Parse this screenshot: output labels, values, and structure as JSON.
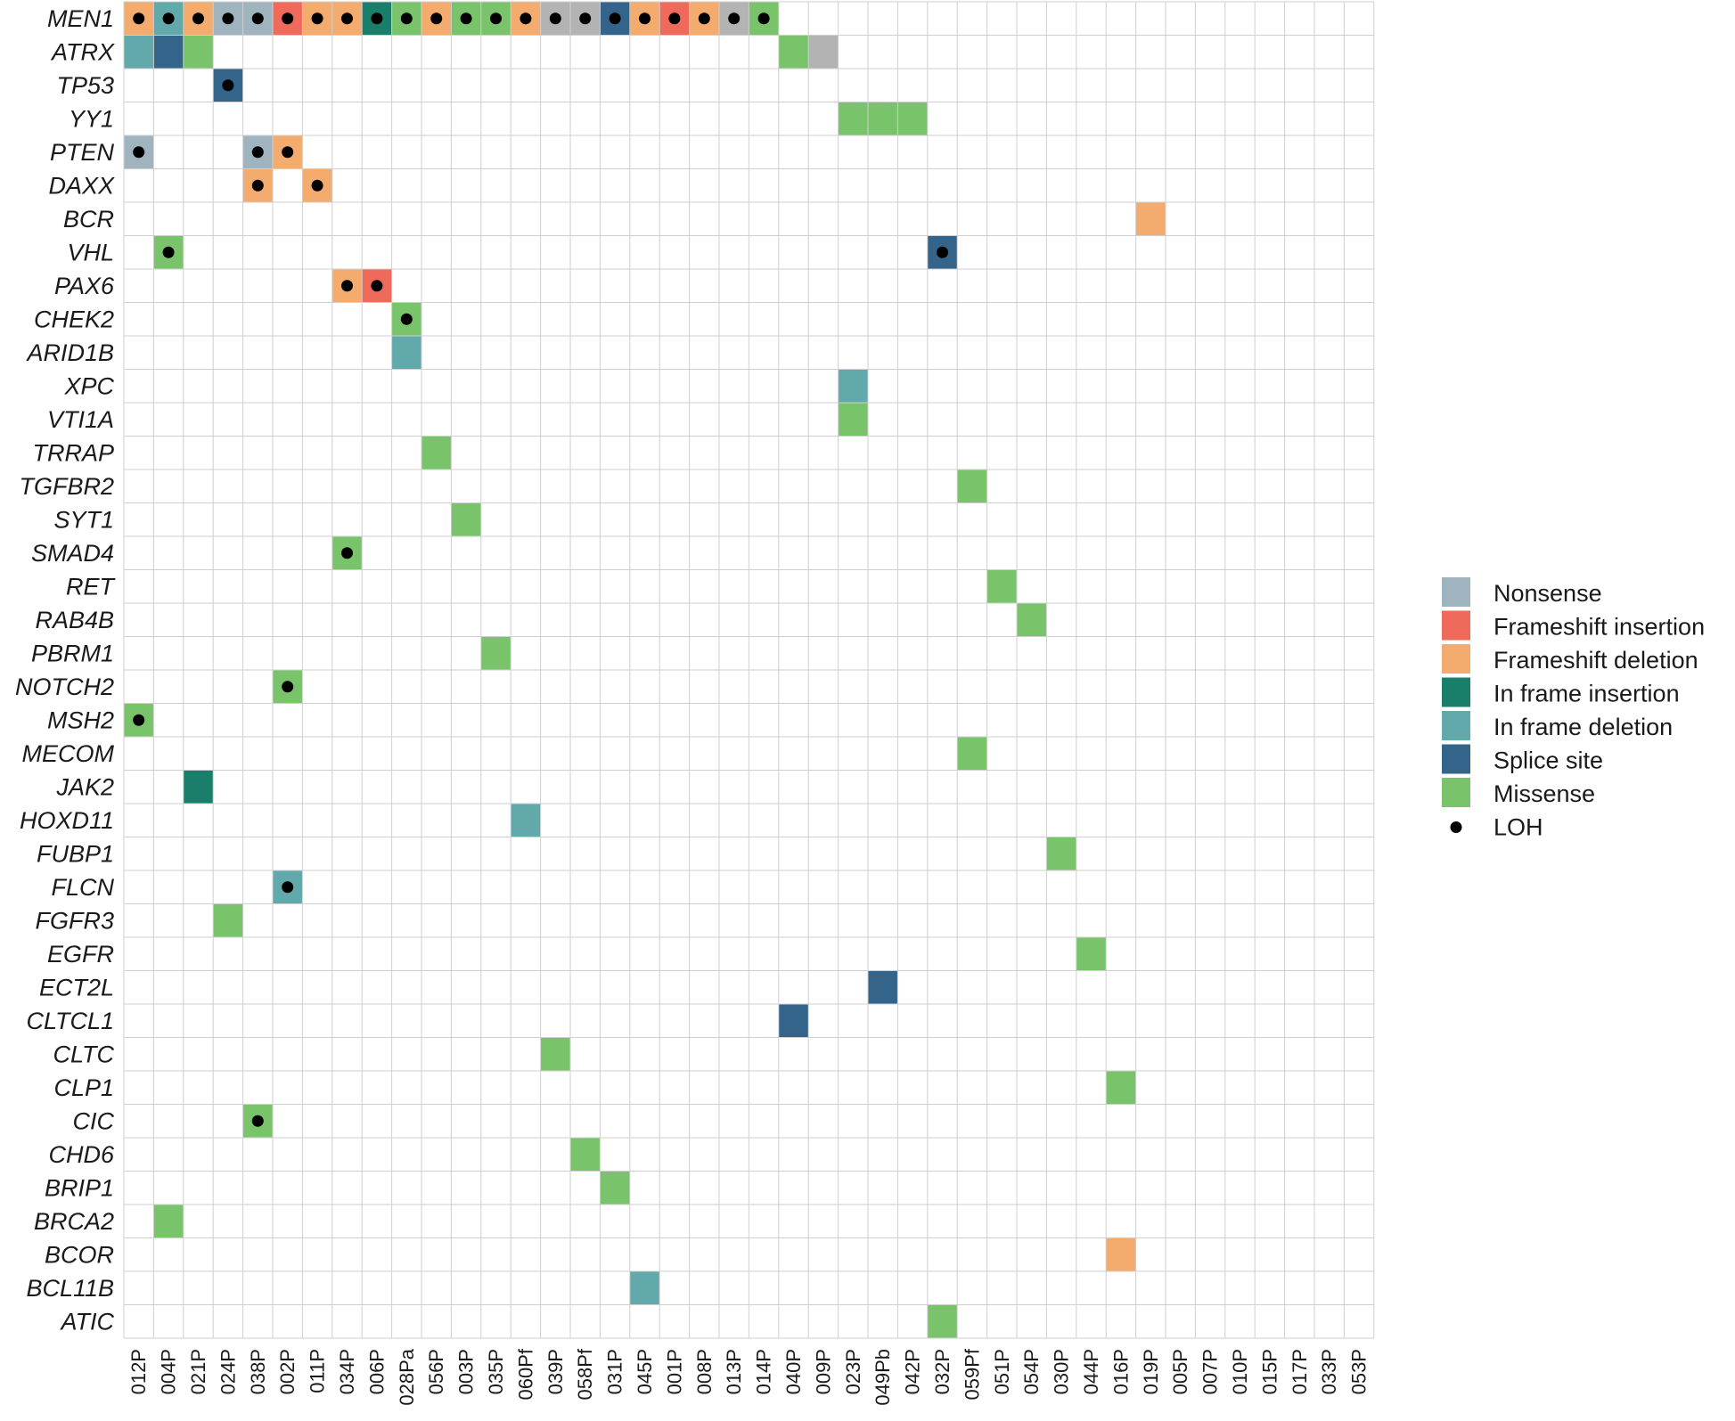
{
  "chart_data": {
    "type": "heatmap",
    "title": "",
    "genes": [
      "MEN1",
      "ATRX",
      "TP53",
      "YY1",
      "PTEN",
      "DAXX",
      "BCR",
      "VHL",
      "PAX6",
      "CHEK2",
      "ARID1B",
      "XPC",
      "VTI1A",
      "TRRAP",
      "TGFBR2",
      "SYT1",
      "SMAD4",
      "RET",
      "RAB4B",
      "PBRM1",
      "NOTCH2",
      "MSH2",
      "MECOM",
      "JAK2",
      "HOXD11",
      "FUBP1",
      "FLCN",
      "FGFR3",
      "EGFR",
      "ECT2L",
      "CLTCL1",
      "CLTC",
      "CLP1",
      "CIC",
      "CHD6",
      "BRIP1",
      "BRCA2",
      "BCOR",
      "BCL11B",
      "ATIC"
    ],
    "samples": [
      "012P",
      "004P",
      "021P",
      "024P",
      "038P",
      "002P",
      "011P",
      "034P",
      "006P",
      "028Pa",
      "056P",
      "003P",
      "035P",
      "060Pf",
      "039P",
      "058Pf",
      "031P",
      "045P",
      "001P",
      "008P",
      "013P",
      "014P",
      "040P",
      "009P",
      "023P",
      "049Pb",
      "042P",
      "032P",
      "059Pf",
      "051P",
      "054P",
      "030P",
      "044P",
      "016P",
      "019P",
      "005P",
      "007P",
      "010P",
      "015P",
      "017P",
      "033P",
      "053P"
    ],
    "categories": [
      {
        "key": "nonsense",
        "label": "Nonsense",
        "color": "#a0b4bf"
      },
      {
        "key": "fs_ins",
        "label": "Frameshift insertion",
        "color": "#ef6a5a"
      },
      {
        "key": "fs_del",
        "label": "Frameshift deletion",
        "color": "#f4ab6e"
      },
      {
        "key": "if_ins",
        "label": "In frame insertion",
        "color": "#1a7f6a"
      },
      {
        "key": "if_del",
        "label": "In frame deletion",
        "color": "#62a9ab"
      },
      {
        "key": "splice",
        "label": "Splice site",
        "color": "#35648a"
      },
      {
        "key": "missense",
        "label": "Missense",
        "color": "#79c46b"
      }
    ],
    "loh_label": "LOH",
    "other_color": "#b3b3b3",
    "mutations": [
      {
        "gene": "MEN1",
        "sample": "012P",
        "type": "fs_del",
        "loh": true
      },
      {
        "gene": "MEN1",
        "sample": "004P",
        "type": "if_del",
        "loh": true
      },
      {
        "gene": "MEN1",
        "sample": "021P",
        "type": "fs_del",
        "loh": true
      },
      {
        "gene": "MEN1",
        "sample": "024P",
        "type": "nonsense",
        "loh": true
      },
      {
        "gene": "MEN1",
        "sample": "038P",
        "type": "nonsense",
        "loh": true
      },
      {
        "gene": "MEN1",
        "sample": "002P",
        "type": "fs_ins",
        "loh": true
      },
      {
        "gene": "MEN1",
        "sample": "011P",
        "type": "fs_del",
        "loh": true
      },
      {
        "gene": "MEN1",
        "sample": "034P",
        "type": "fs_del",
        "loh": true
      },
      {
        "gene": "MEN1",
        "sample": "006P",
        "type": "if_ins",
        "loh": true
      },
      {
        "gene": "MEN1",
        "sample": "028Pa",
        "type": "missense",
        "loh": true
      },
      {
        "gene": "MEN1",
        "sample": "056P",
        "type": "fs_del",
        "loh": true
      },
      {
        "gene": "MEN1",
        "sample": "003P",
        "type": "missense",
        "loh": true
      },
      {
        "gene": "MEN1",
        "sample": "035P",
        "type": "missense",
        "loh": true
      },
      {
        "gene": "MEN1",
        "sample": "060Pf",
        "type": "fs_del",
        "loh": true
      },
      {
        "gene": "MEN1",
        "sample": "039P",
        "type": "other",
        "loh": true
      },
      {
        "gene": "MEN1",
        "sample": "058Pf",
        "type": "other",
        "loh": true
      },
      {
        "gene": "MEN1",
        "sample": "031P",
        "type": "splice",
        "loh": true
      },
      {
        "gene": "MEN1",
        "sample": "045P",
        "type": "fs_del",
        "loh": true
      },
      {
        "gene": "MEN1",
        "sample": "001P",
        "type": "fs_ins",
        "loh": true
      },
      {
        "gene": "MEN1",
        "sample": "008P",
        "type": "fs_del",
        "loh": true
      },
      {
        "gene": "MEN1",
        "sample": "013P",
        "type": "other",
        "loh": true
      },
      {
        "gene": "MEN1",
        "sample": "014P",
        "type": "missense",
        "loh": true
      },
      {
        "gene": "ATRX",
        "sample": "012P",
        "type": "if_del",
        "loh": false
      },
      {
        "gene": "ATRX",
        "sample": "004P",
        "type": "splice",
        "loh": false
      },
      {
        "gene": "ATRX",
        "sample": "021P",
        "type": "missense",
        "loh": false
      },
      {
        "gene": "ATRX",
        "sample": "040P",
        "type": "missense",
        "loh": false
      },
      {
        "gene": "ATRX",
        "sample": "009P",
        "type": "other",
        "loh": false
      },
      {
        "gene": "TP53",
        "sample": "024P",
        "type": "splice",
        "loh": true
      },
      {
        "gene": "YY1",
        "sample": "023P",
        "type": "missense",
        "loh": false
      },
      {
        "gene": "YY1",
        "sample": "049Pb",
        "type": "missense",
        "loh": false
      },
      {
        "gene": "YY1",
        "sample": "042P",
        "type": "missense",
        "loh": false
      },
      {
        "gene": "PTEN",
        "sample": "012P",
        "type": "nonsense",
        "loh": true
      },
      {
        "gene": "PTEN",
        "sample": "038P",
        "type": "nonsense",
        "loh": true
      },
      {
        "gene": "PTEN",
        "sample": "002P",
        "type": "fs_del",
        "loh": true
      },
      {
        "gene": "DAXX",
        "sample": "038P",
        "type": "fs_del",
        "loh": true
      },
      {
        "gene": "DAXX",
        "sample": "011P",
        "type": "fs_del",
        "loh": true
      },
      {
        "gene": "BCR",
        "sample": "019P",
        "type": "fs_del",
        "loh": false
      },
      {
        "gene": "VHL",
        "sample": "004P",
        "type": "missense",
        "loh": true
      },
      {
        "gene": "VHL",
        "sample": "032P",
        "type": "splice",
        "loh": true
      },
      {
        "gene": "PAX6",
        "sample": "034P",
        "type": "fs_del",
        "loh": true
      },
      {
        "gene": "PAX6",
        "sample": "006P",
        "type": "fs_ins",
        "loh": true
      },
      {
        "gene": "CHEK2",
        "sample": "028Pa",
        "type": "missense",
        "loh": true
      },
      {
        "gene": "ARID1B",
        "sample": "028Pa",
        "type": "if_del",
        "loh": false
      },
      {
        "gene": "XPC",
        "sample": "023P",
        "type": "if_del",
        "loh": false
      },
      {
        "gene": "VTI1A",
        "sample": "023P",
        "type": "missense",
        "loh": false
      },
      {
        "gene": "TRRAP",
        "sample": "056P",
        "type": "missense",
        "loh": false
      },
      {
        "gene": "TGFBR2",
        "sample": "059Pf",
        "type": "missense",
        "loh": false
      },
      {
        "gene": "SYT1",
        "sample": "003P",
        "type": "missense",
        "loh": false
      },
      {
        "gene": "SMAD4",
        "sample": "034P",
        "type": "missense",
        "loh": true
      },
      {
        "gene": "RET",
        "sample": "051P",
        "type": "missense",
        "loh": false
      },
      {
        "gene": "RAB4B",
        "sample": "054P",
        "type": "missense",
        "loh": false
      },
      {
        "gene": "PBRM1",
        "sample": "035P",
        "type": "missense",
        "loh": false
      },
      {
        "gene": "NOTCH2",
        "sample": "002P",
        "type": "missense",
        "loh": true
      },
      {
        "gene": "MSH2",
        "sample": "012P",
        "type": "missense",
        "loh": true
      },
      {
        "gene": "MECOM",
        "sample": "059Pf",
        "type": "missense",
        "loh": false
      },
      {
        "gene": "JAK2",
        "sample": "021P",
        "type": "if_ins",
        "loh": false
      },
      {
        "gene": "HOXD11",
        "sample": "060Pf",
        "type": "if_del",
        "loh": false
      },
      {
        "gene": "FUBP1",
        "sample": "030P",
        "type": "missense",
        "loh": false
      },
      {
        "gene": "FLCN",
        "sample": "002P",
        "type": "if_del",
        "loh": true
      },
      {
        "gene": "FGFR3",
        "sample": "024P",
        "type": "missense",
        "loh": false
      },
      {
        "gene": "EGFR",
        "sample": "044P",
        "type": "missense",
        "loh": false
      },
      {
        "gene": "ECT2L",
        "sample": "049Pb",
        "type": "splice",
        "loh": false
      },
      {
        "gene": "CLTCL1",
        "sample": "040P",
        "type": "splice",
        "loh": false
      },
      {
        "gene": "CLTC",
        "sample": "039P",
        "type": "missense",
        "loh": false
      },
      {
        "gene": "CLP1",
        "sample": "016P",
        "type": "missense",
        "loh": false
      },
      {
        "gene": "CIC",
        "sample": "038P",
        "type": "missense",
        "loh": true
      },
      {
        "gene": "CHD6",
        "sample": "058Pf",
        "type": "missense",
        "loh": false
      },
      {
        "gene": "BRIP1",
        "sample": "031P",
        "type": "missense",
        "loh": false
      },
      {
        "gene": "BRCA2",
        "sample": "004P",
        "type": "missense",
        "loh": false
      },
      {
        "gene": "BCOR",
        "sample": "016P",
        "type": "fs_del",
        "loh": false
      },
      {
        "gene": "BCL11B",
        "sample": "045P",
        "type": "if_del",
        "loh": false
      },
      {
        "gene": "ATIC",
        "sample": "032P",
        "type": "missense",
        "loh": false
      }
    ]
  }
}
